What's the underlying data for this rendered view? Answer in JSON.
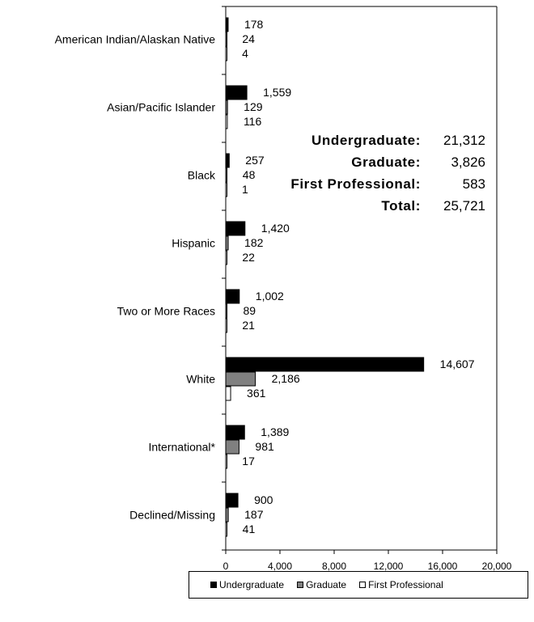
{
  "chart_data": {
    "type": "bar",
    "orientation": "horizontal",
    "categories": [
      "American Indian/Alaskan Native",
      "Asian/Pacific Islander",
      "Black",
      "Hispanic",
      "Two or More Races",
      "White",
      "International*",
      "Declined/Missing"
    ],
    "series": [
      {
        "name": "Undergraduate",
        "values": [
          178,
          1559,
          257,
          1420,
          1002,
          14607,
          1389,
          900
        ],
        "labels": [
          "178",
          "1,559",
          "257",
          "1,420",
          "1,002",
          "14,607",
          "1,389",
          "900"
        ],
        "color": "#000000"
      },
      {
        "name": "Graduate",
        "values": [
          24,
          129,
          48,
          182,
          89,
          2186,
          981,
          187
        ],
        "labels": [
          "24",
          "129",
          "48",
          "182",
          "89",
          "2,186",
          "981",
          "187"
        ],
        "color": "#808080"
      },
      {
        "name": "First Professional",
        "values": [
          4,
          116,
          1,
          22,
          21,
          361,
          17,
          41
        ],
        "labels": [
          "4",
          "116",
          "1",
          "22",
          "21",
          "361",
          "17",
          "41"
        ],
        "color": "#ffffff"
      }
    ],
    "xlim": [
      0,
      20000
    ],
    "xticks": [
      0,
      4000,
      8000,
      12000,
      16000,
      20000
    ],
    "xtick_labels": [
      "0",
      "4,000",
      "8,000",
      "12,000",
      "16,000",
      "20,000"
    ],
    "grid": false,
    "legend_position": "bottom"
  },
  "summary": [
    {
      "label": "Undergraduate:",
      "value": "21,312"
    },
    {
      "label": "Graduate:",
      "value": "3,826"
    },
    {
      "label": "First Professional:",
      "value": "583"
    },
    {
      "label": "Total:",
      "value": "25,721"
    }
  ]
}
